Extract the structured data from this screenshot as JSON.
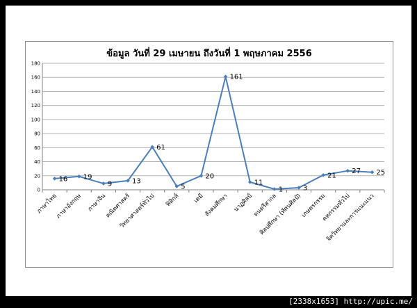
{
  "footer": {
    "text": "[2338x1653] http://upic.me/"
  },
  "colors": {
    "line": "#4a7ebb",
    "grid": "#b3b3b3",
    "axis": "#808080",
    "text": "#000000"
  },
  "chart_data": {
    "type": "line",
    "title": "ข้อมูล วันที่ 29 เมษายน ถึงวันที่ 1 พฤษภาคม 2556",
    "xlabel": "",
    "ylabel": "",
    "ylim": [
      0,
      180
    ],
    "yticks": [
      0,
      20,
      40,
      60,
      80,
      100,
      120,
      140,
      160,
      180
    ],
    "grid": true,
    "categories": [
      "ภาษาไทย",
      "ภาษาอังกฤษ",
      "ภาษาจีน",
      "คณิตศาสตร์",
      "วิทยาศาสตร์ทั่วไป",
      "ฟิสิกส์",
      "เคมี",
      "สังคมศึกษา",
      "นาฏศิลป์",
      "ดนตรีสากล",
      "ศิลปศึกษา (ทัศนศิลป์)",
      "เกษตรกรรม",
      "คหกรรมทั่วไป",
      "จิตวิทยาและการแนะแนว"
    ],
    "series": [
      {
        "values": [
          16,
          19,
          9,
          13,
          61,
          5,
          20,
          161,
          11,
          1,
          3,
          21,
          27,
          25
        ]
      }
    ]
  }
}
